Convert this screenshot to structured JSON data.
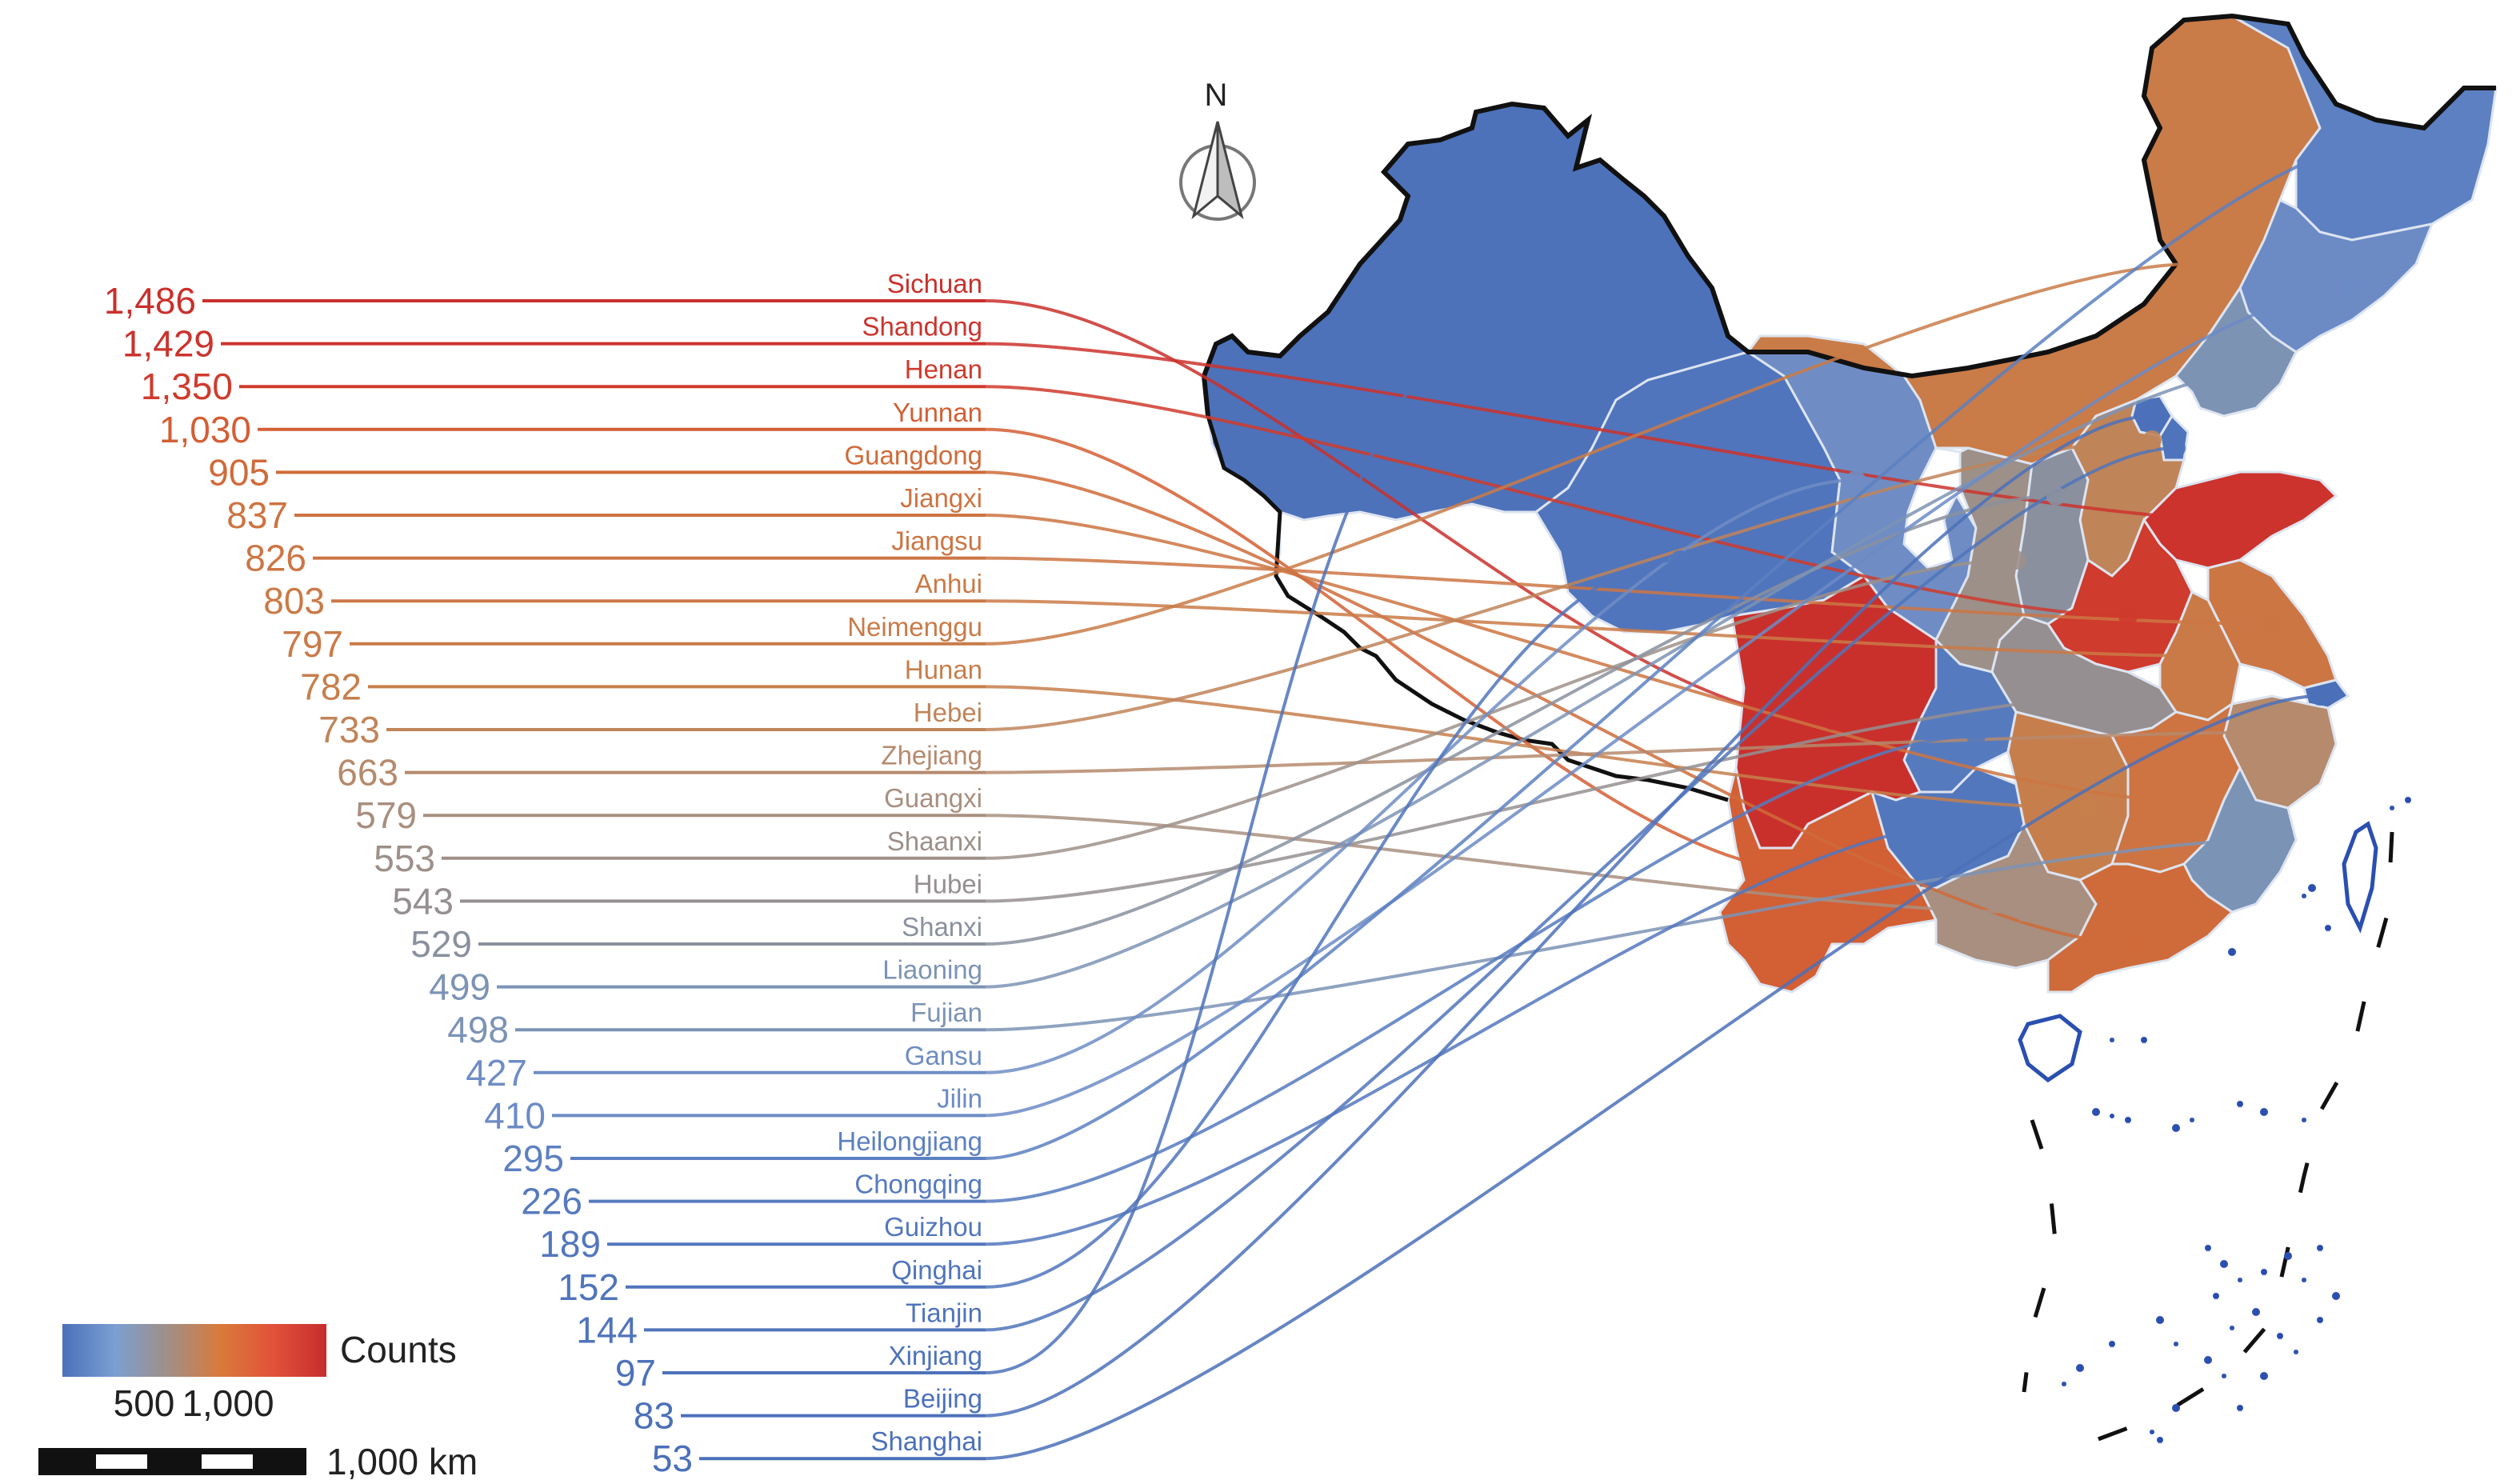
{
  "title": "",
  "north_label": "N",
  "legend": {
    "title": "Counts",
    "ticks": [
      "500",
      "1,000"
    ],
    "gradient_colors": [
      "#4b70b9",
      "#7b9fd2",
      "#a08f86",
      "#d97a3a",
      "#e2513a",
      "#c62d2d"
    ]
  },
  "scale_bar": {
    "label": "1,000 km"
  },
  "colors": {
    "low": "#4b70b9",
    "mid_low": "#7896cc",
    "mid": "#a18d86",
    "mid_high": "#d8733d",
    "high": "#cf3030",
    "boundary": "#111111",
    "province_edge": "#dde4f0",
    "taiwan_islands": "#2a4fb0"
  },
  "chart_data": {
    "type": "choropleth",
    "value_label": "Counts",
    "regions": [
      {
        "name": "Sichuan",
        "value": 1486,
        "value_text": "1,486",
        "color": "#c9302c"
      },
      {
        "name": "Shandong",
        "value": 1429,
        "value_text": "1,429",
        "color": "#cc332d"
      },
      {
        "name": "Henan",
        "value": 1350,
        "value_text": "1,350",
        "color": "#cf3b2d"
      },
      {
        "name": "Yunnan",
        "value": 1030,
        "value_text": "1,030",
        "color": "#d35f34"
      },
      {
        "name": "Guangdong",
        "value": 905,
        "value_text": "905",
        "color": "#cf6b3a"
      },
      {
        "name": "Jiangxi",
        "value": 837,
        "value_text": "837",
        "color": "#cd7442"
      },
      {
        "name": "Jiangsu",
        "value": 826,
        "value_text": "826",
        "color": "#cc7644"
      },
      {
        "name": "Anhui",
        "value": 803,
        "value_text": "803",
        "color": "#ca7a47"
      },
      {
        "name": "Neimenggu",
        "value": 797,
        "value_text": "797",
        "color": "#c97b48"
      },
      {
        "name": "Hunan",
        "value": 782,
        "value_text": "782",
        "color": "#c67f4c"
      },
      {
        "name": "Hebei",
        "value": 733,
        "value_text": "733",
        "color": "#c08459"
      },
      {
        "name": "Zhejiang",
        "value": 663,
        "value_text": "663",
        "color": "#b58a6d"
      },
      {
        "name": "Guangxi",
        "value": 579,
        "value_text": "579",
        "color": "#a88f80"
      },
      {
        "name": "Shaanxi",
        "value": 553,
        "value_text": "553",
        "color": "#9d9089"
      },
      {
        "name": "Hubei",
        "value": 543,
        "value_text": "543",
        "color": "#958f92"
      },
      {
        "name": "Shanxi",
        "value": 529,
        "value_text": "529",
        "color": "#8a909e"
      },
      {
        "name": "Liaoning",
        "value": 499,
        "value_text": "499",
        "color": "#7c93b4"
      },
      {
        "name": "Fujian",
        "value": 498,
        "value_text": "498",
        "color": "#7b93b5"
      },
      {
        "name": "Gansu",
        "value": 427,
        "value_text": "427",
        "color": "#6f8dc4"
      },
      {
        "name": "Jilin",
        "value": 410,
        "value_text": "410",
        "color": "#6c8bc5"
      },
      {
        "name": "Heilongjiang",
        "value": 295,
        "value_text": "295",
        "color": "#5c80c1"
      },
      {
        "name": "Chongqing",
        "value": 226,
        "value_text": "226",
        "color": "#567abe"
      },
      {
        "name": "Guizhou",
        "value": 189,
        "value_text": "189",
        "color": "#5377bd"
      },
      {
        "name": "Qinghai",
        "value": 152,
        "value_text": "152",
        "color": "#5075bc"
      },
      {
        "name": "Tianjin",
        "value": 144,
        "value_text": "144",
        "color": "#5074bb"
      },
      {
        "name": "Xinjiang",
        "value": 97,
        "value_text": "97",
        "color": "#4d72ba"
      },
      {
        "name": "Beijing",
        "value": 83,
        "value_text": "83",
        "color": "#4c71ba"
      },
      {
        "name": "Shanghai",
        "value": 53,
        "value_text": "53",
        "color": "#4b70b9"
      }
    ]
  }
}
